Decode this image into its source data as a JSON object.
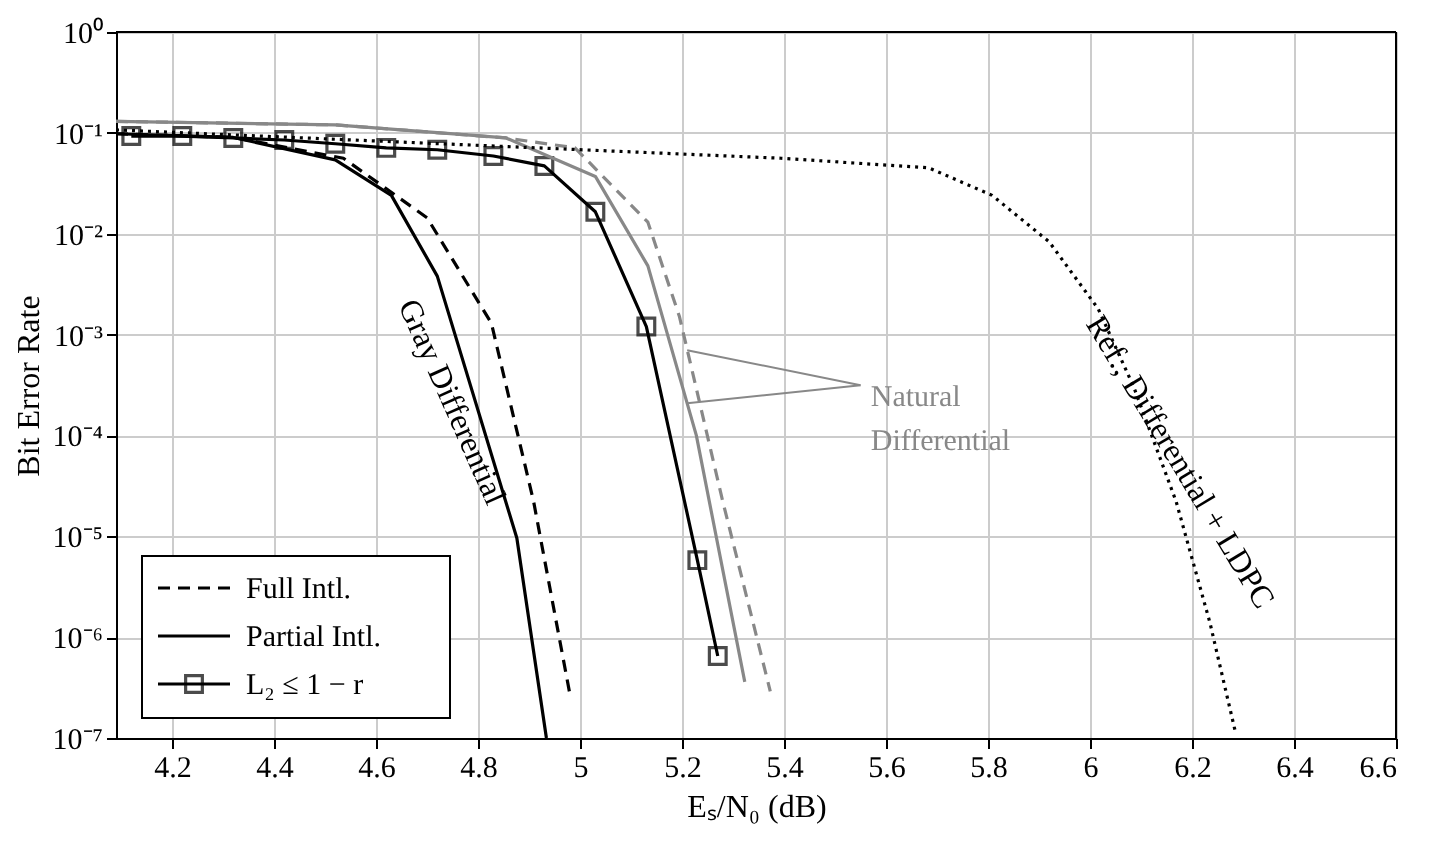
{
  "chart_data": {
    "type": "line",
    "xlabel": "Eₛ/N₀ (dB)",
    "ylabel": "Bit Error Rate",
    "xlim": [
      4.09,
      6.6
    ],
    "xticks": [
      4.2,
      4.4,
      4.6,
      4.8,
      5,
      5.2,
      5.4,
      5.6,
      5.8,
      6,
      6.2,
      6.4,
      6.6
    ],
    "ylim": [
      1e-07,
      1
    ],
    "log": "y",
    "yticks": [
      {
        "value": 1,
        "label": "10⁰"
      },
      {
        "value": 0.1,
        "label": "10⁻¹"
      },
      {
        "value": 0.01,
        "label": "10⁻²"
      },
      {
        "value": 0.001,
        "label": "10⁻³"
      },
      {
        "value": 0.0001,
        "label": "10⁻⁴"
      },
      {
        "value": 1e-05,
        "label": "10⁻⁵"
      },
      {
        "value": 1e-06,
        "label": "10⁻⁶"
      },
      {
        "value": 1e-07,
        "label": "10⁻⁷"
      }
    ],
    "grid": true,
    "legend": "bottom left",
    "series": [
      {
        "name": "Full Intl.",
        "color": "#000000",
        "line_style": "dashed",
        "marker": "none",
        "x": [
          4.09,
          4.32,
          4.536,
          4.7,
          4.826,
          4.909,
          4.979
        ],
        "values": [
          0.098,
          0.09,
          0.056,
          0.0144,
          0.0013,
          2.2e-05,
          2.9e-07
        ]
      },
      {
        "name": "Partial Intl.",
        "color": "#000000",
        "line_style": "solid",
        "marker": "none",
        "x": [
          4.09,
          4.32,
          4.52,
          4.63,
          4.72,
          4.876,
          4.934
        ],
        "values": [
          0.098,
          0.09,
          0.054,
          0.024,
          0.0038,
          9.6e-06,
          1e-07
        ]
      },
      {
        "name": "L₂ ≤ 1 − r",
        "color": "#000000",
        "line_style": "solid",
        "marker": "square",
        "x": [
          4.12,
          4.22,
          4.32,
          4.42,
          4.52,
          4.62,
          4.72,
          4.83,
          4.93,
          5.03,
          5.13,
          5.23,
          5.27
        ],
        "values": [
          0.093,
          0.093,
          0.089,
          0.085,
          0.078,
          0.071,
          0.068,
          0.059,
          0.047,
          0.0165,
          0.0012,
          5.8e-06,
          6.5e-07
        ]
      },
      {
        "color": "#888888",
        "line_style": "solid",
        "marker": "none",
        "x": [
          4.09,
          4.52,
          4.855,
          5.03,
          5.133,
          5.228,
          5.323
        ],
        "values": [
          0.13,
          0.12,
          0.089,
          0.037,
          0.0048,
          0.0001,
          3.6e-07
        ]
      },
      {
        "color": "#888888",
        "line_style": "dashed",
        "marker": "none",
        "x": [
          4.09,
          4.52,
          4.855,
          4.99,
          5.133,
          5.195,
          5.28,
          5.373
        ],
        "values": [
          0.13,
          0.12,
          0.089,
          0.071,
          0.013,
          0.0015,
          2.2e-05,
          2.9e-07
        ]
      },
      {
        "color": "#000000",
        "line_style": "dotted",
        "marker": "none",
        "x": [
          4.09,
          5.394,
          5.684,
          5.808,
          5.92,
          6.016,
          6.086,
          6.169,
          6.235,
          6.285
        ],
        "values": [
          0.107,
          0.056,
          0.045,
          0.024,
          0.0083,
          0.0018,
          0.0003,
          2.2e-05,
          1.4e-06,
          1.15e-07
        ]
      }
    ],
    "annotations": [
      "Gray Differential",
      {
        "text": "Natural Differential",
        "x": 5.21,
        "y": 0.0007
      },
      "Ref., Differential + LDPC"
    ]
  }
}
